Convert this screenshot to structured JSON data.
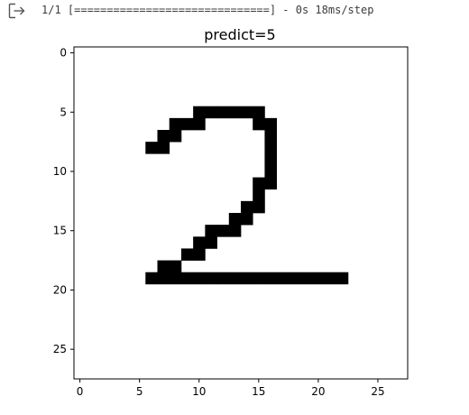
{
  "output": {
    "icon": "output-redirect-icon",
    "log_text": "1/1 [==============================] - 0s 18ms/step"
  },
  "chart_data": {
    "type": "heatmap",
    "title": "predict=5",
    "colormap": "binary",
    "grid_size": [
      28,
      28
    ],
    "xlim": [
      -0.5,
      27.5
    ],
    "ylim": [
      27.5,
      -0.5
    ],
    "xticks": [
      0,
      5,
      10,
      15,
      20,
      25
    ],
    "yticks": [
      0,
      5,
      10,
      15,
      20,
      25
    ],
    "xtick_labels": [
      "0",
      "5",
      "10",
      "15",
      "20",
      "25"
    ],
    "ytick_labels": [
      "0",
      "5",
      "10",
      "15",
      "20",
      "25"
    ],
    "grid": false,
    "pixel_value": 1,
    "filled_cells": [
      {
        "row": 5,
        "cols": [
          10,
          11,
          12,
          13,
          14,
          15
        ]
      },
      {
        "row": 6,
        "cols": [
          8,
          9,
          10,
          15,
          16
        ]
      },
      {
        "row": 7,
        "cols": [
          7,
          8,
          16
        ]
      },
      {
        "row": 8,
        "cols": [
          6,
          7,
          16
        ]
      },
      {
        "row": 9,
        "cols": [
          16
        ]
      },
      {
        "row": 10,
        "cols": [
          16
        ]
      },
      {
        "row": 11,
        "cols": [
          15,
          16
        ]
      },
      {
        "row": 12,
        "cols": [
          15
        ]
      },
      {
        "row": 13,
        "cols": [
          14,
          15
        ]
      },
      {
        "row": 14,
        "cols": [
          13,
          14
        ]
      },
      {
        "row": 15,
        "cols": [
          11,
          12,
          13
        ]
      },
      {
        "row": 16,
        "cols": [
          10,
          11
        ]
      },
      {
        "row": 17,
        "cols": [
          9,
          10
        ]
      },
      {
        "row": 18,
        "cols": [
          7,
          8
        ]
      },
      {
        "row": 19,
        "cols": [
          6,
          7,
          8,
          9,
          10,
          11,
          12,
          13,
          14,
          15,
          16,
          17,
          18,
          19,
          20,
          21,
          22
        ]
      }
    ],
    "colors": {
      "filled": "#000000",
      "background": "#ffffff"
    }
  }
}
